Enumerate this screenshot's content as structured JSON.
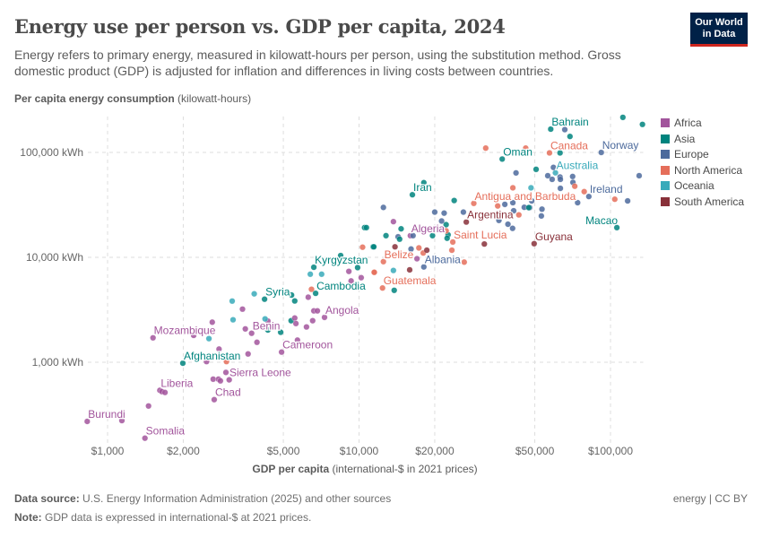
{
  "header": {
    "title": "Energy use per person vs. GDP per capita, 2024",
    "subtitle": "Energy refers to primary energy, measured in kilowatt-hours per person, using the substitution method. Gross domestic product (GDP) is adjusted for inflation and differences in living costs between countries.",
    "logo": "Our World in Data"
  },
  "footer": {
    "source_label": "Data source:",
    "source": "U.S. Energy Information Administration (2025) and other sources",
    "note_label": "Note:",
    "note": "GDP data is expressed in international-$ at 2021 prices.",
    "right": "energy | CC BY"
  },
  "chart_data": {
    "type": "scatter",
    "title": "Energy use per person vs. GDP per capita, 2024",
    "xlabel_bold": "GDP per capita",
    "xlabel_rest": " (international-$ in 2021 prices)",
    "ylabel_bold": "Per capita energy consumption",
    "ylabel_rest": " (kilowatt-hours)",
    "xscale": "log",
    "yscale": "log",
    "xlim": [
      815,
      135000
    ],
    "ylim": [
      167,
      220000
    ],
    "grid": true,
    "legend_position": "right",
    "x_ticks": [
      {
        "v": 1000,
        "label": "$1,000"
      },
      {
        "v": 2000,
        "label": "$2,000"
      },
      {
        "v": 5000,
        "label": "$5,000"
      },
      {
        "v": 10000,
        "label": "$10,000"
      },
      {
        "v": 20000,
        "label": "$20,000"
      },
      {
        "v": 50000,
        "label": "$50,000"
      },
      {
        "v": 100000,
        "label": "$100,000"
      }
    ],
    "y_ticks": [
      {
        "v": 1000,
        "label": "1,000 kWh"
      },
      {
        "v": 10000,
        "label": "10,000 kWh"
      },
      {
        "v": 100000,
        "label": "100,000 kWh"
      }
    ],
    "legend": [
      {
        "name": "Africa",
        "color": "#a2559c"
      },
      {
        "name": "Asia",
        "color": "#00847e"
      },
      {
        "name": "Europe",
        "color": "#4c6a9c"
      },
      {
        "name": "North America",
        "color": "#e56e5a"
      },
      {
        "name": "Oceania",
        "color": "#38aaba"
      },
      {
        "name": "South America",
        "color": "#883039"
      }
    ],
    "points": [
      [
        830,
        273,
        "Africa",
        "Burundi"
      ],
      [
        1408,
        189,
        "Africa",
        "Somalia"
      ],
      [
        1140,
        278,
        "Africa",
        ""
      ],
      [
        1455,
        383,
        "Africa",
        ""
      ],
      [
        1614,
        540,
        "Africa",
        "Liberia"
      ],
      [
        1645,
        525,
        "Africa",
        ""
      ],
      [
        1692,
        515,
        "Africa",
        ""
      ],
      [
        1516,
        1710,
        "Africa",
        "Mozambique"
      ],
      [
        1992,
        980,
        "Asia",
        "Afghanistan"
      ],
      [
        2655,
        440,
        "Africa",
        "Chad"
      ],
      [
        2955,
        800,
        "Africa",
        "Sierra Leone"
      ],
      [
        2630,
        690,
        "Africa",
        ""
      ],
      [
        2760,
        690,
        "Africa",
        ""
      ],
      [
        2810,
        665,
        "Africa",
        ""
      ],
      [
        3046,
        680,
        "Africa",
        ""
      ],
      [
        2475,
        1015,
        "Africa",
        ""
      ],
      [
        2970,
        1015,
        "North America",
        ""
      ],
      [
        2775,
        1335,
        "Africa",
        ""
      ],
      [
        3620,
        1200,
        "Africa",
        ""
      ],
      [
        4920,
        1250,
        "Africa",
        "Cameroon"
      ],
      [
        3927,
        1550,
        "Africa",
        ""
      ],
      [
        5690,
        1625,
        "Africa",
        ""
      ],
      [
        2530,
        1680,
        "Oceania",
        ""
      ],
      [
        2200,
        1805,
        "Africa",
        ""
      ],
      [
        2608,
        2410,
        "Africa",
        ""
      ],
      [
        3155,
        2540,
        "Oceania",
        ""
      ],
      [
        3530,
        2080,
        "Africa",
        ""
      ],
      [
        3740,
        1890,
        "Africa",
        "Benin"
      ],
      [
        4340,
        2470,
        "Africa",
        ""
      ],
      [
        4230,
        2590,
        "Oceania",
        ""
      ],
      [
        4340,
        2030,
        "Asia",
        ""
      ],
      [
        4880,
        1930,
        "Asia",
        ""
      ],
      [
        3440,
        3210,
        "Africa",
        ""
      ],
      [
        3130,
        3830,
        "Oceania",
        ""
      ],
      [
        3830,
        4490,
        "Oceania",
        ""
      ],
      [
        4210,
        3990,
        "Asia",
        "Syria"
      ],
      [
        5390,
        4370,
        "Asia",
        ""
      ],
      [
        5550,
        3840,
        "Asia",
        ""
      ],
      [
        5370,
        2490,
        "Asia",
        ""
      ],
      [
        5550,
        2640,
        "Africa",
        ""
      ],
      [
        5610,
        2340,
        "Africa",
        ""
      ],
      [
        6180,
        2170,
        "Africa",
        ""
      ],
      [
        6540,
        2490,
        "Africa",
        ""
      ],
      [
        6610,
        3090,
        "Africa",
        ""
      ],
      [
        6830,
        3090,
        "Africa",
        ""
      ],
      [
        7290,
        2680,
        "Africa",
        "Angola"
      ],
      [
        6280,
        4170,
        "Africa",
        ""
      ],
      [
        6470,
        4960,
        "North America",
        ""
      ],
      [
        6720,
        4540,
        "Asia",
        "Cambodia"
      ],
      [
        6400,
        6910,
        "Oceania",
        ""
      ],
      [
        7100,
        6910,
        "Oceania",
        ""
      ],
      [
        6610,
        8050,
        "Asia",
        "Kyrgyzstan"
      ],
      [
        8450,
        10400,
        "Asia",
        ""
      ],
      [
        9110,
        7350,
        "Africa",
        ""
      ],
      [
        9300,
        5960,
        "Africa",
        ""
      ],
      [
        10200,
        6400,
        "Africa",
        ""
      ],
      [
        9870,
        7990,
        "Asia",
        ""
      ],
      [
        10330,
        12500,
        "North America",
        ""
      ],
      [
        10520,
        19200,
        "Asia",
        ""
      ],
      [
        11380,
        12600,
        "Asia",
        ""
      ],
      [
        11480,
        7200,
        "North America",
        ""
      ],
      [
        57850,
        166800,
        "Asia",
        "Bahrain"
      ],
      [
        65800,
        165000,
        "Europe",
        ""
      ],
      [
        69000,
        142000,
        "Asia",
        ""
      ],
      [
        112000,
        216000,
        "Asia",
        ""
      ],
      [
        134000,
        185000,
        "Asia",
        ""
      ],
      [
        37100,
        86500,
        "Asia",
        "Oman"
      ],
      [
        46000,
        110000,
        "North America",
        ""
      ],
      [
        31900,
        110000,
        "North America",
        ""
      ],
      [
        57200,
        99000,
        "North America",
        "Canada"
      ],
      [
        63000,
        99000,
        "Asia",
        ""
      ],
      [
        91900,
        100000,
        "Europe",
        "Norway"
      ],
      [
        130000,
        60000,
        "Europe",
        ""
      ],
      [
        60400,
        64000,
        "Oceania",
        "Australia"
      ],
      [
        59300,
        72000,
        "Europe",
        ""
      ],
      [
        50600,
        69000,
        "Asia",
        ""
      ],
      [
        42100,
        63800,
        "Europe",
        ""
      ],
      [
        56300,
        60000,
        "Europe",
        ""
      ],
      [
        58600,
        55400,
        "Europe",
        ""
      ],
      [
        63000,
        58300,
        "Europe",
        ""
      ],
      [
        63200,
        55400,
        "Europe",
        ""
      ],
      [
        70700,
        59000,
        "Europe",
        ""
      ],
      [
        70900,
        51800,
        "Europe",
        ""
      ],
      [
        63200,
        45500,
        "Europe",
        ""
      ],
      [
        72100,
        47600,
        "North America",
        ""
      ],
      [
        48300,
        46000,
        "Oceania",
        ""
      ],
      [
        40900,
        46000,
        "North America",
        ""
      ],
      [
        78600,
        42300,
        "North America",
        ""
      ],
      [
        82000,
        38000,
        "Europe",
        "Ireland"
      ],
      [
        117000,
        34500,
        "Europe",
        ""
      ],
      [
        104000,
        35800,
        "North America",
        ""
      ],
      [
        74000,
        33200,
        "Europe",
        ""
      ],
      [
        28600,
        32700,
        "North America",
        "Antigua and Barbuda"
      ],
      [
        35600,
        30900,
        "North America",
        ""
      ],
      [
        38000,
        32000,
        "Europe",
        ""
      ],
      [
        40900,
        33200,
        "Europe",
        ""
      ],
      [
        45400,
        30000,
        "Europe",
        ""
      ],
      [
        47700,
        29800,
        "Europe",
        ""
      ],
      [
        53400,
        28800,
        "Europe",
        ""
      ],
      [
        53100,
        24800,
        "Europe",
        ""
      ],
      [
        48600,
        34500,
        "Europe",
        ""
      ],
      [
        47300,
        29800,
        "Asia",
        ""
      ],
      [
        26700,
        21700,
        "South America",
        "Argentina"
      ],
      [
        30600,
        23300,
        "North America",
        ""
      ],
      [
        36000,
        22500,
        "Europe",
        ""
      ],
      [
        39100,
        20700,
        "Europe",
        ""
      ],
      [
        40800,
        18900,
        "Europe",
        ""
      ],
      [
        43200,
        25400,
        "North America",
        ""
      ],
      [
        41200,
        27800,
        "Europe",
        ""
      ],
      [
        26000,
        27000,
        "Europe",
        ""
      ],
      [
        20000,
        27000,
        "Europe",
        ""
      ],
      [
        21800,
        26400,
        "Europe",
        ""
      ],
      [
        23900,
        34800,
        "Asia",
        ""
      ],
      [
        16300,
        39500,
        "Asia",
        "Iran"
      ],
      [
        18100,
        51500,
        "Asia",
        ""
      ],
      [
        12500,
        29900,
        "Europe",
        ""
      ],
      [
        13700,
        21900,
        "Africa",
        ""
      ],
      [
        16000,
        16100,
        "Africa",
        "Algeria"
      ],
      [
        14300,
        15700,
        "Europe",
        ""
      ],
      [
        16400,
        16100,
        "Europe",
        ""
      ],
      [
        10700,
        19200,
        "Asia",
        ""
      ],
      [
        12800,
        16100,
        "Asia",
        ""
      ],
      [
        14700,
        18700,
        "Asia",
        ""
      ],
      [
        14500,
        14900,
        "Asia",
        ""
      ],
      [
        19600,
        16100,
        "Asia",
        ""
      ],
      [
        21300,
        22200,
        "Europe",
        ""
      ],
      [
        22200,
        20500,
        "Asia",
        ""
      ],
      [
        22600,
        16400,
        "Asia",
        ""
      ],
      [
        22400,
        15200,
        "Asia",
        ""
      ],
      [
        22200,
        17900,
        "North America",
        ""
      ],
      [
        23600,
        14000,
        "North America",
        "Saint Lucia"
      ],
      [
        23400,
        11700,
        "North America",
        ""
      ],
      [
        26200,
        9000,
        "North America",
        ""
      ],
      [
        49700,
        13500,
        "South America",
        "Guyana"
      ],
      [
        31500,
        13400,
        "South America",
        ""
      ],
      [
        106000,
        19200,
        "Asia",
        "Macao"
      ],
      [
        11450,
        12600,
        "Asia",
        ""
      ],
      [
        13900,
        12600,
        "South America",
        ""
      ],
      [
        16100,
        12000,
        "Europe",
        ""
      ],
      [
        17300,
        12300,
        "North America",
        ""
      ],
      [
        18000,
        11000,
        "North America",
        ""
      ],
      [
        18600,
        11700,
        "South America",
        ""
      ],
      [
        12500,
        9100,
        "North America",
        "Belize"
      ],
      [
        11500,
        7200,
        "North America",
        ""
      ],
      [
        13700,
        7500,
        "Oceania",
        ""
      ],
      [
        15900,
        7600,
        "South America",
        ""
      ],
      [
        17000,
        9700,
        "Africa",
        ""
      ],
      [
        18100,
        8100,
        "Europe",
        "Albania"
      ],
      [
        12400,
        5100,
        "North America",
        "Guatemala"
      ],
      [
        13800,
        4850,
        "Asia",
        ""
      ]
    ]
  }
}
